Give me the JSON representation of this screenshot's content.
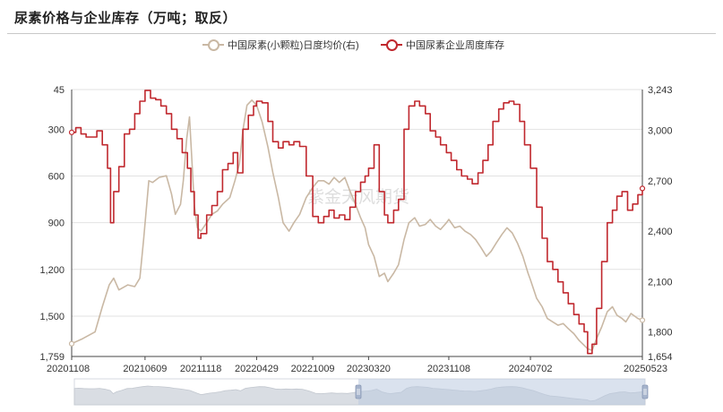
{
  "title": "尿素价格与企业库存（万吨；取反）",
  "watermark": "紫金天风期货",
  "legend": [
    {
      "label": "中国尿素(小颗粒)日度均价(右)",
      "color": "#c9b8a4"
    },
    {
      "label": "中国尿素企业周度库存",
      "color": "#c0282e"
    }
  ],
  "chart_data": {
    "type": "line",
    "left_axis": {
      "ticks": [
        "45",
        "300",
        "600",
        "900",
        "1,200",
        "1,500",
        "1,759"
      ],
      "inverted": true,
      "range": [
        45,
        1759
      ]
    },
    "right_axis": {
      "ticks": [
        "3,243",
        "3,000",
        "2,700",
        "2,400",
        "2,100",
        "1,800",
        "1,654"
      ],
      "range": [
        1654,
        3243
      ]
    },
    "x_ticks": [
      "20201108",
      "20210609",
      "20211118",
      "20220429",
      "20221009",
      "20230320",
      "20231108",
      "20240702",
      "20250523"
    ],
    "x_range": [
      "2020-11-08",
      "2025-05-23"
    ],
    "series": [
      {
        "name": "中国尿素(小颗粒)日度均价(右)",
        "axis": "right",
        "color": "#c9b8a4",
        "points": [
          [
            "2020-11-08",
            1730
          ],
          [
            "2020-12-10",
            1760
          ],
          [
            "2021-01-15",
            1800
          ],
          [
            "2021-02-05",
            1950
          ],
          [
            "2021-02-25",
            2080
          ],
          [
            "2021-03-10",
            2120
          ],
          [
            "2021-03-25",
            2050
          ],
          [
            "2021-04-20",
            2080
          ],
          [
            "2021-05-10",
            2070
          ],
          [
            "2021-05-25",
            2120
          ],
          [
            "2021-06-05",
            2350
          ],
          [
            "2021-06-20",
            2700
          ],
          [
            "2021-07-01",
            2690
          ],
          [
            "2021-07-20",
            2720
          ],
          [
            "2021-08-10",
            2730
          ],
          [
            "2021-08-25",
            2620
          ],
          [
            "2021-09-05",
            2500
          ],
          [
            "2021-09-20",
            2560
          ],
          [
            "2021-09-28",
            2700
          ],
          [
            "2021-10-08",
            2950
          ],
          [
            "2021-10-16",
            3080
          ],
          [
            "2021-10-22",
            2860
          ],
          [
            "2021-10-30",
            2550
          ],
          [
            "2021-11-08",
            2420
          ],
          [
            "2021-11-18",
            2400
          ],
          [
            "2021-12-05",
            2450
          ],
          [
            "2021-12-20",
            2500
          ],
          [
            "2022-01-05",
            2520
          ],
          [
            "2022-01-20",
            2560
          ],
          [
            "2022-02-10",
            2600
          ],
          [
            "2022-02-25",
            2700
          ],
          [
            "2022-03-10",
            2800
          ],
          [
            "2022-03-20",
            3000
          ],
          [
            "2022-04-01",
            3150
          ],
          [
            "2022-04-15",
            3180
          ],
          [
            "2022-04-29",
            3150
          ],
          [
            "2022-05-15",
            3050
          ],
          [
            "2022-06-01",
            2900
          ],
          [
            "2022-06-15",
            2750
          ],
          [
            "2022-07-01",
            2600
          ],
          [
            "2022-07-15",
            2450
          ],
          [
            "2022-08-01",
            2400
          ],
          [
            "2022-08-15",
            2450
          ],
          [
            "2022-09-01",
            2500
          ],
          [
            "2022-09-20",
            2600
          ],
          [
            "2022-10-09",
            2660
          ],
          [
            "2022-10-25",
            2700
          ],
          [
            "2022-11-10",
            2700
          ],
          [
            "2022-11-25",
            2680
          ],
          [
            "2022-12-10",
            2720
          ],
          [
            "2022-12-25",
            2690
          ],
          [
            "2023-01-10",
            2720
          ],
          [
            "2023-01-25",
            2640
          ],
          [
            "2023-02-10",
            2560
          ],
          [
            "2023-02-25",
            2480
          ],
          [
            "2023-03-10",
            2420
          ],
          [
            "2023-03-20",
            2320
          ],
          [
            "2023-04-05",
            2250
          ],
          [
            "2023-04-20",
            2130
          ],
          [
            "2023-05-05",
            2150
          ],
          [
            "2023-05-15",
            2100
          ],
          [
            "2023-06-01",
            2150
          ],
          [
            "2023-06-15",
            2200
          ],
          [
            "2023-07-01",
            2350
          ],
          [
            "2023-07-15",
            2450
          ],
          [
            "2023-08-01",
            2480
          ],
          [
            "2023-08-15",
            2430
          ],
          [
            "2023-09-01",
            2440
          ],
          [
            "2023-09-15",
            2470
          ],
          [
            "2023-10-01",
            2430
          ],
          [
            "2023-10-15",
            2410
          ],
          [
            "2023-11-01",
            2450
          ],
          [
            "2023-11-08",
            2470
          ],
          [
            "2023-11-25",
            2420
          ],
          [
            "2023-12-10",
            2430
          ],
          [
            "2023-12-25",
            2400
          ],
          [
            "2024-01-10",
            2380
          ],
          [
            "2024-01-25",
            2350
          ],
          [
            "2024-02-10",
            2300
          ],
          [
            "2024-02-25",
            2250
          ],
          [
            "2024-03-10",
            2280
          ],
          [
            "2024-03-25",
            2330
          ],
          [
            "2024-04-10",
            2380
          ],
          [
            "2024-04-25",
            2420
          ],
          [
            "2024-05-10",
            2390
          ],
          [
            "2024-05-25",
            2330
          ],
          [
            "2024-06-10",
            2250
          ],
          [
            "2024-06-25",
            2150
          ],
          [
            "2024-07-02",
            2110
          ],
          [
            "2024-07-20",
            2000
          ],
          [
            "2024-08-05",
            1950
          ],
          [
            "2024-08-20",
            1880
          ],
          [
            "2024-09-05",
            1860
          ],
          [
            "2024-09-20",
            1840
          ],
          [
            "2024-10-05",
            1850
          ],
          [
            "2024-10-20",
            1820
          ],
          [
            "2024-11-05",
            1790
          ],
          [
            "2024-11-20",
            1750
          ],
          [
            "2024-12-05",
            1720
          ],
          [
            "2024-12-15",
            1700
          ],
          [
            "2024-12-28",
            1690
          ],
          [
            "2025-01-10",
            1760
          ],
          [
            "2025-01-25",
            1830
          ],
          [
            "2025-02-10",
            1920
          ],
          [
            "2025-02-25",
            1950
          ],
          [
            "2025-03-10",
            1900
          ],
          [
            "2025-03-25",
            1880
          ],
          [
            "2025-04-05",
            1860
          ],
          [
            "2025-04-20",
            1910
          ],
          [
            "2025-05-10",
            1880
          ],
          [
            "2025-05-23",
            1870
          ]
        ]
      },
      {
        "name": "中国尿素企业周度库存",
        "axis": "left",
        "color": "#c0282e",
        "points": [
          [
            "2020-11-08",
            320
          ],
          [
            "2020-11-20",
            290
          ],
          [
            "2020-12-05",
            330
          ],
          [
            "2020-12-20",
            350
          ],
          [
            "2021-01-05",
            350
          ],
          [
            "2021-01-20",
            310
          ],
          [
            "2021-02-05",
            400
          ],
          [
            "2021-02-20",
            550
          ],
          [
            "2021-03-01",
            900
          ],
          [
            "2021-03-10",
            700
          ],
          [
            "2021-03-25",
            540
          ],
          [
            "2021-04-10",
            330
          ],
          [
            "2021-04-25",
            300
          ],
          [
            "2021-05-10",
            200
          ],
          [
            "2021-05-25",
            120
          ],
          [
            "2021-06-09",
            50
          ],
          [
            "2021-06-25",
            100
          ],
          [
            "2021-07-10",
            110
          ],
          [
            "2021-07-25",
            150
          ],
          [
            "2021-08-10",
            200
          ],
          [
            "2021-08-25",
            300
          ],
          [
            "2021-09-10",
            360
          ],
          [
            "2021-09-25",
            450
          ],
          [
            "2021-10-10",
            550
          ],
          [
            "2021-10-20",
            700
          ],
          [
            "2021-10-30",
            850
          ],
          [
            "2021-11-10",
            1000
          ],
          [
            "2021-11-18",
            970
          ],
          [
            "2021-12-05",
            850
          ],
          [
            "2021-12-20",
            790
          ],
          [
            "2022-01-05",
            700
          ],
          [
            "2022-01-20",
            560
          ],
          [
            "2022-02-05",
            520
          ],
          [
            "2022-02-20",
            450
          ],
          [
            "2022-03-05",
            580
          ],
          [
            "2022-03-20",
            300
          ],
          [
            "2022-04-05",
            210
          ],
          [
            "2022-04-20",
            150
          ],
          [
            "2022-04-29",
            120
          ],
          [
            "2022-05-15",
            130
          ],
          [
            "2022-06-01",
            250
          ],
          [
            "2022-06-15",
            380
          ],
          [
            "2022-07-01",
            420
          ],
          [
            "2022-07-15",
            380
          ],
          [
            "2022-08-01",
            400
          ],
          [
            "2022-08-15",
            380
          ],
          [
            "2022-09-01",
            410
          ],
          [
            "2022-09-20",
            600
          ],
          [
            "2022-10-09",
            860
          ],
          [
            "2022-10-25",
            900
          ],
          [
            "2022-11-10",
            860
          ],
          [
            "2022-11-25",
            820
          ],
          [
            "2022-12-10",
            870
          ],
          [
            "2022-12-25",
            850
          ],
          [
            "2023-01-10",
            880
          ],
          [
            "2023-01-25",
            800
          ],
          [
            "2023-02-10",
            700
          ],
          [
            "2023-02-25",
            640
          ],
          [
            "2023-03-10",
            600
          ],
          [
            "2023-03-20",
            550
          ],
          [
            "2023-04-05",
            400
          ],
          [
            "2023-04-20",
            700
          ],
          [
            "2023-05-05",
            850
          ],
          [
            "2023-05-15",
            900
          ],
          [
            "2023-06-01",
            820
          ],
          [
            "2023-06-15",
            750
          ],
          [
            "2023-07-01",
            300
          ],
          [
            "2023-07-15",
            150
          ],
          [
            "2023-08-01",
            120
          ],
          [
            "2023-08-15",
            150
          ],
          [
            "2023-09-01",
            200
          ],
          [
            "2023-09-15",
            310
          ],
          [
            "2023-10-01",
            350
          ],
          [
            "2023-10-15",
            400
          ],
          [
            "2023-11-01",
            450
          ],
          [
            "2023-11-15",
            500
          ],
          [
            "2023-12-01",
            560
          ],
          [
            "2023-12-15",
            600
          ],
          [
            "2024-01-01",
            620
          ],
          [
            "2024-01-15",
            650
          ],
          [
            "2024-02-01",
            580
          ],
          [
            "2024-02-15",
            500
          ],
          [
            "2024-03-01",
            400
          ],
          [
            "2024-03-15",
            250
          ],
          [
            "2024-04-01",
            170
          ],
          [
            "2024-04-15",
            130
          ],
          [
            "2024-05-01",
            120
          ],
          [
            "2024-05-15",
            140
          ],
          [
            "2024-06-01",
            250
          ],
          [
            "2024-06-15",
            400
          ],
          [
            "2024-07-02",
            550
          ],
          [
            "2024-07-20",
            800
          ],
          [
            "2024-08-05",
            1000
          ],
          [
            "2024-08-20",
            1150
          ],
          [
            "2024-09-05",
            1200
          ],
          [
            "2024-09-20",
            1280
          ],
          [
            "2024-10-05",
            1350
          ],
          [
            "2024-10-20",
            1420
          ],
          [
            "2024-11-05",
            1490
          ],
          [
            "2024-11-20",
            1550
          ],
          [
            "2024-12-05",
            1600
          ],
          [
            "2024-12-15",
            1740
          ],
          [
            "2024-12-28",
            1680
          ],
          [
            "2025-01-10",
            1450
          ],
          [
            "2025-01-25",
            1150
          ],
          [
            "2025-02-10",
            900
          ],
          [
            "2025-02-25",
            820
          ],
          [
            "2025-03-10",
            730
          ],
          [
            "2025-03-25",
            700
          ],
          [
            "2025-04-10",
            820
          ],
          [
            "2025-04-25",
            780
          ],
          [
            "2025-05-10",
            720
          ],
          [
            "2025-05-23",
            680
          ]
        ]
      }
    ]
  }
}
